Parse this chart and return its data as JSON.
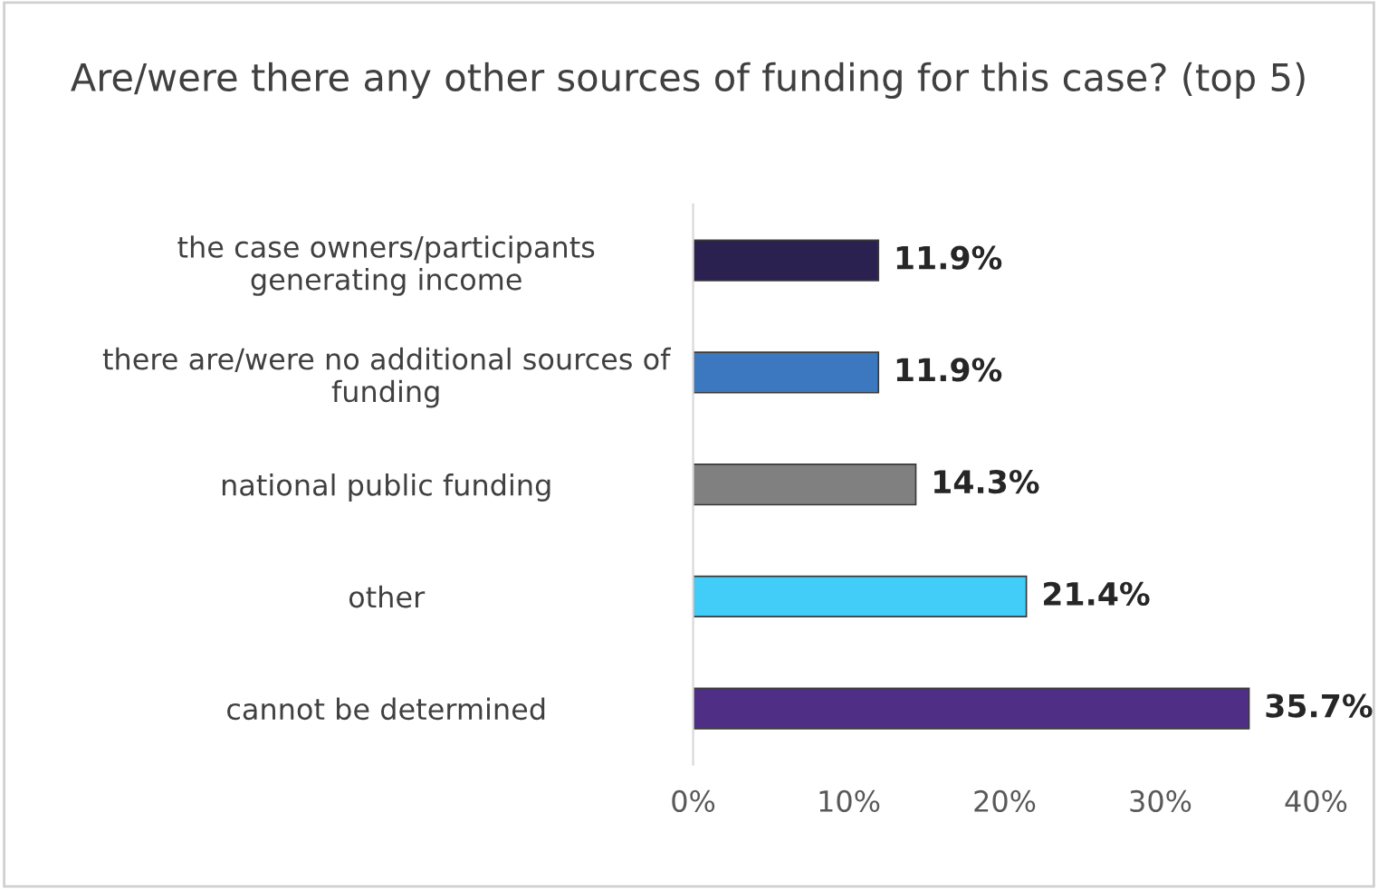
{
  "chart_data": {
    "type": "bar",
    "orientation": "horizontal",
    "title": "Are/were there any other sources of funding for this case? (top 5)",
    "categories": [
      "the case owners/participants\ngenerating income",
      "there are/were no additional sources of\nfunding",
      "national public funding",
      "other",
      "cannot be determined"
    ],
    "values": [
      11.9,
      11.9,
      14.3,
      21.4,
      35.7
    ],
    "colors": [
      "#2b2150",
      "#3b78c0",
      "#808080",
      "#42cdf8",
      "#4f2f86"
    ],
    "value_labels": [
      "11.9%",
      "11.9%",
      "14.3%",
      "21.4%",
      "35.7%"
    ],
    "xlim": [
      0,
      40
    ],
    "xticks": [
      {
        "value": 0,
        "label": "0%"
      },
      {
        "value": 10,
        "label": "10%"
      },
      {
        "value": 20,
        "label": "20%"
      },
      {
        "value": 30,
        "label": "30%"
      },
      {
        "value": 40,
        "label": "40%"
      }
    ],
    "grid": false,
    "legend": false
  }
}
